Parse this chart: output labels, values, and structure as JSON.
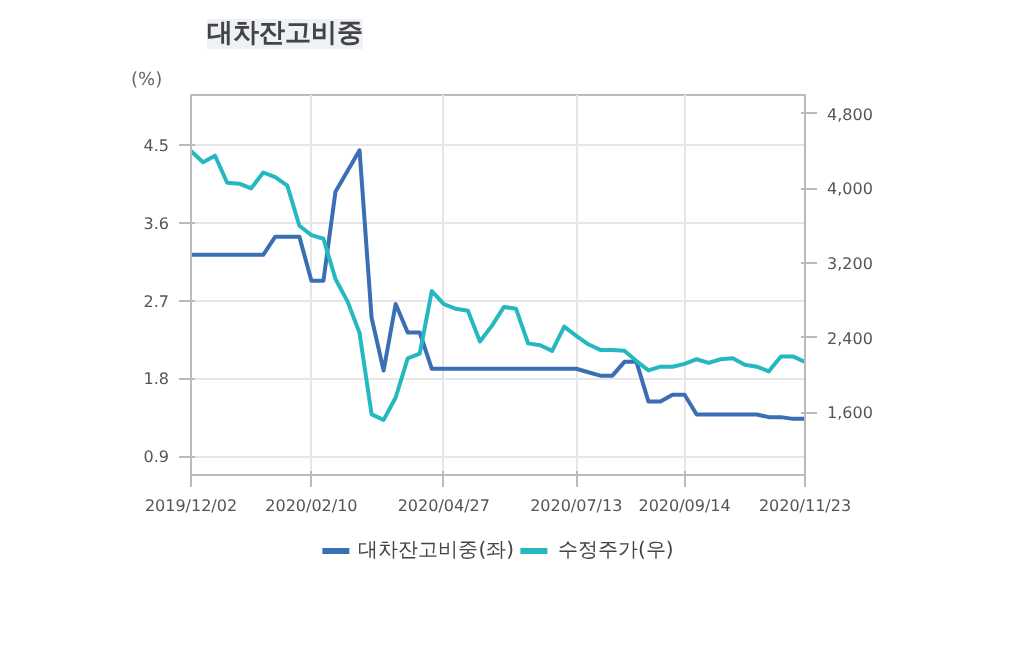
{
  "chart_data": {
    "type": "line",
    "title": "대차잔고비중",
    "ylabel": "(%)",
    "x": [
      "2019-12-02",
      "2019-12-09",
      "2019-12-16",
      "2019-12-23",
      "2019-12-30",
      "2020-01-06",
      "2020-01-13",
      "2020-01-20",
      "2020-01-27",
      "2020-02-03",
      "2020-02-10",
      "2020-02-17",
      "2020-02-24",
      "2020-03-02",
      "2020-03-09",
      "2020-03-16",
      "2020-03-23",
      "2020-03-30",
      "2020-04-06",
      "2020-04-13",
      "2020-04-20",
      "2020-04-27",
      "2020-05-04",
      "2020-05-11",
      "2020-05-18",
      "2020-05-25",
      "2020-06-01",
      "2020-06-08",
      "2020-06-15",
      "2020-06-22",
      "2020-06-29",
      "2020-07-06",
      "2020-07-13",
      "2020-07-20",
      "2020-07-27",
      "2020-08-03",
      "2020-08-10",
      "2020-08-17",
      "2020-08-24",
      "2020-08-31",
      "2020-09-07",
      "2020-09-14",
      "2020-09-21",
      "2020-09-28",
      "2020-10-05",
      "2020-10-12",
      "2020-10-19",
      "2020-10-26",
      "2020-11-02",
      "2020-11-09",
      "2020-11-16",
      "2020-11-23"
    ],
    "series": [
      {
        "name": "대차잔고비중(좌)",
        "color": "#3a6fb5",
        "values": [
          3.23,
          3.23,
          3.23,
          3.23,
          3.23,
          3.23,
          3.23,
          3.44,
          3.44,
          3.44,
          2.93,
          2.93,
          3.96,
          4.2,
          4.44,
          2.5,
          1.89,
          2.66,
          2.33,
          2.33,
          1.91,
          1.91,
          1.91,
          1.91,
          1.91,
          1.91,
          1.91,
          1.91,
          1.91,
          1.91,
          1.91,
          1.91,
          1.91,
          1.87,
          1.83,
          1.83,
          1.99,
          1.99,
          1.53,
          1.53,
          1.61,
          1.61,
          1.38,
          1.38,
          1.38,
          1.38,
          1.38,
          1.38,
          1.35,
          1.35,
          1.33,
          1.33
        ]
      },
      {
        "name": "수정주가(우)",
        "color": "#26b8c0",
        "axis": "y2",
        "values": [
          4400,
          4280,
          4350,
          4060,
          4050,
          4000,
          4170,
          4120,
          4030,
          3600,
          3500,
          3460,
          3030,
          2790,
          2450,
          1580,
          1520,
          1760,
          2180,
          2230,
          2900,
          2760,
          2710,
          2690,
          2360,
          2530,
          2730,
          2710,
          2340,
          2320,
          2260,
          2520,
          2420,
          2330,
          2270,
          2270,
          2260,
          2150,
          2050,
          2090,
          2090,
          2120,
          2170,
          2130,
          2170,
          2180,
          2110,
          2090,
          2040,
          2200,
          2200,
          2140
        ]
      }
    ],
    "xlim": [
      "2019-12-02",
      "2020-11-23"
    ],
    "xticks": [
      {
        "value": "2019-12-02",
        "label": "2019/12/02"
      },
      {
        "value": "2020-02-10",
        "label": "2020/02/10"
      },
      {
        "value": "2020-04-27",
        "label": "2020/04/27"
      },
      {
        "value": "2020-07-13",
        "label": "2020/07/13"
      },
      {
        "value": "2020-09-14",
        "label": "2020/09/14"
      },
      {
        "value": "2020-11-23",
        "label": "2020/11/23"
      }
    ],
    "ylim": [
      0.68,
      5.08
    ],
    "yticks": [
      0.9,
      1.8,
      2.7,
      3.6,
      4.5
    ],
    "y2lim": [
      930,
      5000
    ],
    "y2ticks": [
      {
        "value": 1600,
        "label": "1,600"
      },
      {
        "value": 2400,
        "label": "2,400"
      },
      {
        "value": 3200,
        "label": "3,200"
      },
      {
        "value": 4000,
        "label": "4,000"
      },
      {
        "value": 4800,
        "label": "4,800"
      }
    ],
    "grid": true,
    "legend": "bottom",
    "line_style": "solid"
  }
}
